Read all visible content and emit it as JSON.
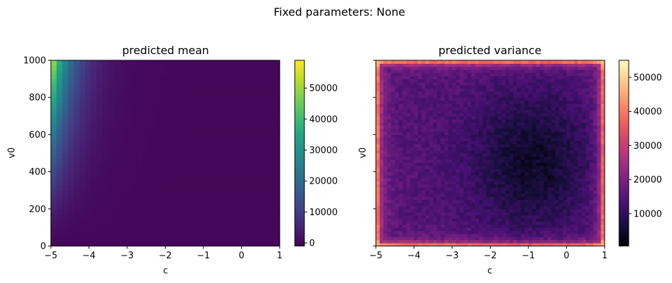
{
  "suptitle": "Fixed parameters: None",
  "chart_data": [
    {
      "type": "heatmap",
      "title": "predicted mean",
      "xlabel": "c",
      "ylabel": "v0",
      "xlim": [
        -5,
        1
      ],
      "ylim": [
        0,
        1000
      ],
      "x_ticks": [
        "−5",
        "−4",
        "−3",
        "−2",
        "−1",
        "0",
        "1"
      ],
      "y_ticks": [
        "0",
        "200",
        "400",
        "600",
        "800",
        "1000"
      ],
      "y_tick_values": [
        0,
        200,
        400,
        600,
        800,
        1000
      ],
      "colormap": "viridis",
      "colorbar_range": [
        -1000,
        59000
      ],
      "colorbar_ticks": [
        "0",
        "10000",
        "20000",
        "30000",
        "40000",
        "50000"
      ],
      "colorbar_tick_values": [
        0,
        10000,
        20000,
        30000,
        40000,
        50000
      ],
      "grid_size": [
        40,
        40
      ],
      "model": "mean ≈ 57000 · exp(-2.0·(c+5)) · (v0/1000)^1.5, max ≈ 57000 at c=-5, v0=1000, ≈0 for c > -2"
    },
    {
      "type": "heatmap",
      "title": "predicted variance",
      "xlabel": "c",
      "ylabel": "v0",
      "xlim": [
        -5,
        1
      ],
      "ylim": [
        0,
        1000
      ],
      "x_ticks": [
        "−5",
        "−4",
        "−3",
        "−2",
        "−1",
        "0",
        "1"
      ],
      "y_ticks": [
        "0",
        "200",
        "400",
        "600",
        "800",
        "1000"
      ],
      "y_tick_values": [
        0,
        200,
        400,
        600,
        800,
        1000
      ],
      "colormap": "magma",
      "colorbar_range": [
        500,
        55000
      ],
      "colorbar_ticks": [
        "10000",
        "20000",
        "30000",
        "40000",
        "50000"
      ],
      "colorbar_tick_values": [
        10000,
        20000,
        30000,
        40000,
        50000
      ],
      "grid_size": [
        60,
        60
      ],
      "model": "variance ≈ 15000 in the interior, minimum ≈ 2000 near c=-0.9, v0=450; rises to ≈ 35000–55000 along the edges and corners"
    }
  ]
}
